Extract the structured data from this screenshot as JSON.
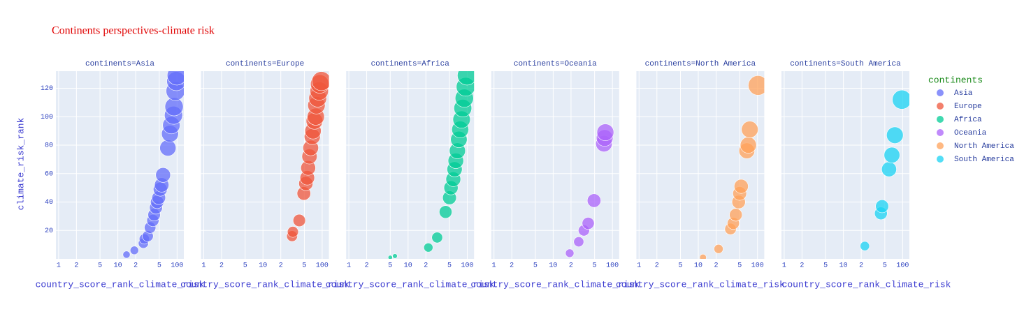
{
  "chart_data": {
    "type": "scatter",
    "title": "Continents perspectives-climate risk",
    "x_label": "country_score_rank_climate_risk",
    "y_label": "climate_risk_rank",
    "legend_title": "continents",
    "x_log": true,
    "xlim": [
      0.9,
      130
    ],
    "xticks": [
      1,
      2,
      5,
      10,
      {
        "value": 20,
        "label": "2"
      },
      {
        "value": 50,
        "label": "5"
      },
      100
    ],
    "ylim": [
      0,
      132
    ],
    "yticks": [
      20,
      40,
      60,
      80,
      100,
      120
    ],
    "grid": true,
    "series": [
      {
        "name": "Asia",
        "facet_title": "continents=Asia",
        "color": "#636efa",
        "x": [
          14,
          19,
          27,
          28,
          32,
          35,
          39,
          41,
          44,
          46,
          49,
          52,
          55,
          58,
          70,
          76,
          80,
          87,
          89,
          94,
          97,
          99
        ],
        "values": [
          3,
          6,
          11,
          14,
          16,
          22,
          27,
          31,
          36,
          40,
          43,
          49,
          52,
          59,
          78,
          88,
          94,
          101,
          107,
          118,
          125,
          129
        ],
        "size": [
          14,
          19,
          27,
          28,
          32,
          35,
          39,
          41,
          44,
          46,
          49,
          52,
          55,
          58,
          70,
          76,
          80,
          87,
          89,
          94,
          97,
          99
        ]
      },
      {
        "name": "Europe",
        "facet_title": "continents=Europe",
        "color": "#ef553b",
        "x": [
          31,
          32,
          41,
          49,
          53,
          56,
          58,
          61,
          64,
          68,
          70,
          74,
          78,
          80,
          84,
          89,
          91,
          97
        ],
        "values": [
          16,
          19,
          27,
          46,
          53,
          57,
          64,
          72,
          78,
          86,
          90,
          97,
          100,
          108,
          113,
          118,
          123,
          125
        ],
        "size": [
          31,
          32,
          41,
          49,
          53,
          56,
          58,
          61,
          64,
          68,
          70,
          74,
          78,
          80,
          84,
          89,
          91,
          97
        ]
      },
      {
        "name": "Africa",
        "facet_title": "continents=Africa",
        "color": "#00cc96",
        "x": [
          5,
          6,
          22,
          31,
          43,
          50,
          53,
          58,
          61,
          64,
          68,
          72,
          76,
          80,
          84,
          89,
          94,
          99
        ],
        "values": [
          1,
          2,
          8,
          15,
          33,
          43,
          50,
          56,
          63,
          69,
          76,
          84,
          91,
          98,
          106,
          113,
          121,
          129
        ],
        "size": [
          5,
          6,
          22,
          31,
          43,
          50,
          53,
          58,
          61,
          64,
          68,
          72,
          76,
          80,
          84,
          89,
          94,
          99
        ]
      },
      {
        "name": "Oceania",
        "facet_title": "continents=Oceania",
        "color": "#ab63fa",
        "x": [
          19,
          27,
          33,
          39,
          49,
          72,
          74,
          76
        ],
        "values": [
          4,
          12,
          20,
          25,
          41,
          81,
          85,
          89
        ],
        "size": [
          19,
          27,
          33,
          39,
          49,
          72,
          74,
          76
        ]
      },
      {
        "name": "North America",
        "facet_title": "continents=North America",
        "color": "#ffa15a",
        "x": [
          12,
          22,
          35,
          39,
          43,
          48,
          50,
          53,
          66,
          70,
          74,
          102
        ],
        "values": [
          1,
          7,
          21,
          25,
          31,
          40,
          46,
          51,
          76,
          80,
          91,
          122
        ],
        "size": [
          12,
          22,
          35,
          39,
          43,
          48,
          50,
          53,
          66,
          70,
          74,
          102
        ]
      },
      {
        "name": "South America",
        "facet_title": "continents=South America",
        "color": "#19d3f3",
        "x": [
          23,
          43,
          45,
          59,
          66,
          74,
          97
        ],
        "values": [
          9,
          32,
          37,
          63,
          73,
          87,
          112
        ],
        "size": [
          23,
          43,
          45,
          59,
          66,
          74,
          97
        ]
      }
    ]
  }
}
